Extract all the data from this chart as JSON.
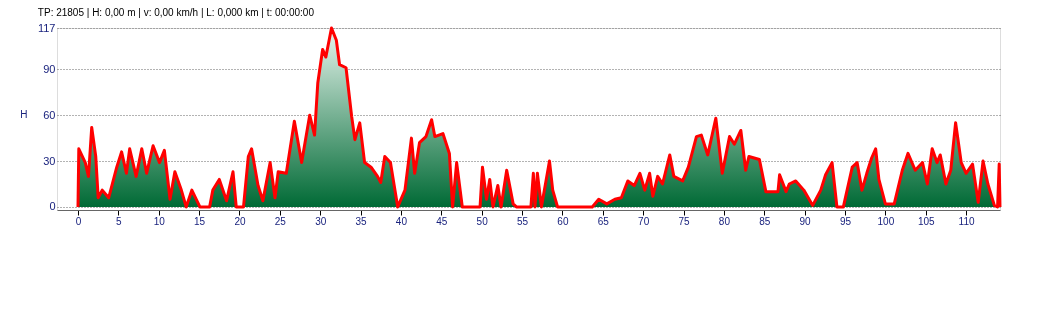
{
  "chart_data": {
    "type": "area",
    "title": "TP: 21805 | H: 0,00 m | v: 0,00 km/h | L: 0,000 km | t: 00:00:00",
    "ylabel": "H",
    "xlim": [
      -2.6,
      114.2
    ],
    "xticks": [
      0,
      5,
      10,
      15,
      20,
      25,
      30,
      35,
      40,
      45,
      50,
      55,
      60,
      65,
      70,
      75,
      80,
      85,
      90,
      95,
      100,
      105,
      110
    ],
    "ylim": [
      -2,
      117
    ],
    "yticks": [
      0,
      30,
      60,
      90,
      117
    ],
    "grid": "y",
    "series": [
      {
        "color": "#ff0000",
        "x": [
          0,
          0.1,
          0.9,
          1.3,
          1.7,
          2.2,
          2.5,
          3.0,
          3.8,
          4.8,
          5.4,
          6.0,
          6.4,
          7.2,
          7.9,
          8.5,
          9.3,
          10.1,
          10.7,
          11.4,
          12.0,
          12.8,
          13.4,
          14.1,
          15.1,
          16.3,
          16.7,
          17.5,
          18.4,
          19.2,
          19.6,
          20.5,
          21.1,
          21.5,
          22.3,
          22.9,
          23.8,
          24.4,
          24.8,
          25.8,
          26.8,
          27.7,
          28.7,
          29.3,
          29.7,
          30.3,
          30.7,
          31.4,
          32.0,
          32.4,
          33.2,
          33.9,
          34.3,
          34.9,
          35.5,
          36.3,
          37.1,
          37.5,
          38.0,
          38.7,
          39.6,
          40.5,
          41.3,
          41.7,
          42.3,
          43.1,
          43.8,
          44.2,
          45.2,
          46.0,
          46.4,
          46.9,
          47.6,
          49.8,
          50.1,
          50.6,
          51.0,
          51.4,
          52.0,
          52.4,
          53.1,
          53.9,
          54.3,
          56.1,
          56.4,
          56.6,
          56.9,
          57.4,
          58.4,
          58.8,
          59.4,
          63.7,
          64.5,
          65.5,
          66.5,
          67.3,
          68.1,
          68.9,
          69.6,
          70.2,
          70.8,
          71.2,
          71.8,
          72.4,
          73.3,
          73.8,
          74.9,
          75.6,
          76.6,
          77.2,
          78.0,
          79.0,
          79.8,
          80.7,
          81.3,
          82.1,
          82.7,
          83.1,
          84.4,
          85.2,
          86.7,
          86.9,
          87.7,
          88.1,
          88.9,
          89.9,
          91.0,
          92.0,
          92.6,
          93.4,
          94.0,
          94.8,
          95.9,
          96.5,
          97.1,
          97.7,
          98.3,
          98.8,
          99.2,
          100.0,
          101.1,
          102.1,
          102.8,
          103.7,
          104.6,
          105.2,
          105.8,
          106.4,
          106.8,
          107.5,
          108.1,
          108.7,
          109.4,
          110.0,
          110.8,
          111.5,
          112.1,
          112.7,
          113.5,
          113.9,
          114.1,
          114.2
        ],
        "values": [
          0,
          38,
          29,
          20,
          52,
          33,
          6,
          11,
          6,
          26,
          36,
          22,
          38,
          20,
          38,
          22,
          40,
          29,
          37,
          5,
          23,
          11,
          0,
          11,
          0,
          0,
          11,
          18,
          4,
          23,
          0,
          0,
          33,
          38,
          14,
          4,
          29,
          6,
          23,
          22,
          56,
          29,
          60,
          47,
          81,
          103,
          98,
          117,
          109,
          93,
          91,
          59,
          44,
          55,
          29,
          26,
          20,
          16,
          33,
          29,
          0,
          11,
          45,
          22,
          42,
          46,
          57,
          46,
          48,
          35,
          0,
          29,
          0,
          0,
          26,
          5,
          18,
          0,
          14,
          0,
          24,
          2,
          0,
          0,
          22,
          0,
          22,
          0,
          30,
          11,
          0,
          0,
          5,
          2,
          5,
          6,
          17,
          14,
          22,
          11,
          22,
          7,
          20,
          15,
          34,
          20,
          17,
          26,
          46,
          47,
          34,
          58,
          22,
          46,
          41,
          50,
          24,
          33,
          31,
          10,
          10,
          21,
          10,
          15,
          17,
          11,
          1,
          11,
          21,
          29,
          0,
          0,
          26,
          29,
          11,
          22,
          32,
          38,
          18,
          2,
          2,
          24,
          35,
          24,
          29,
          15,
          38,
          29,
          34,
          15,
          24,
          55,
          29,
          22,
          28,
          3,
          30,
          15,
          1,
          0,
          28,
          0
        ]
      }
    ]
  }
}
